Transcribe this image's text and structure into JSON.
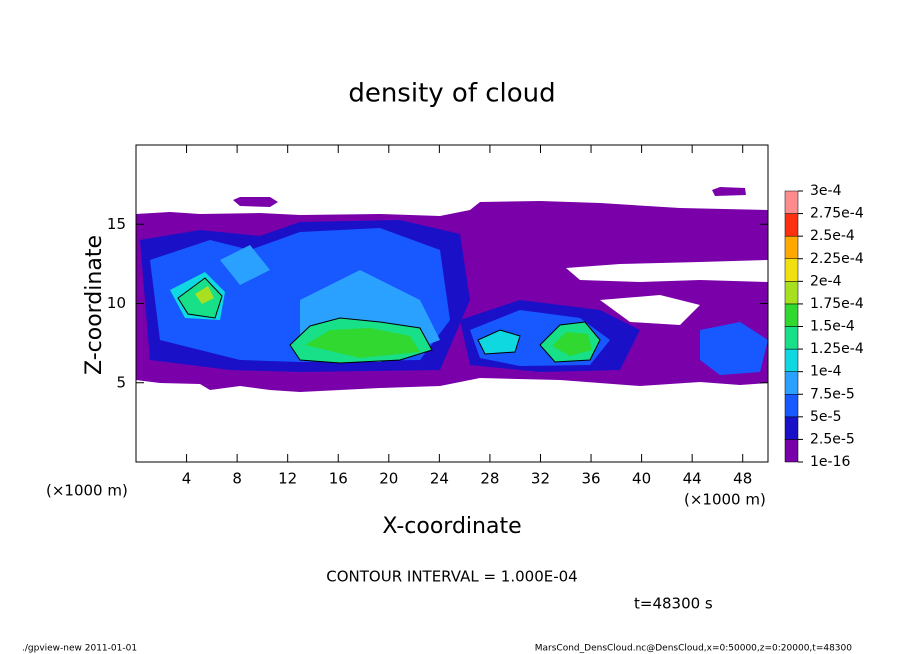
{
  "chart_data": {
    "type": "contour",
    "title": "density of cloud",
    "xlabel": "X-coordinate",
    "ylabel": "Z-coordinate",
    "xunit": "(×1000 m)",
    "xunit_right": "(×1000 m)",
    "xlim": [
      0,
      50
    ],
    "ylim": [
      0,
      20
    ],
    "xticks": [
      4,
      8,
      12,
      16,
      20,
      24,
      28,
      32,
      36,
      40,
      44,
      48
    ],
    "yticks": [
      5,
      10,
      15
    ],
    "colorbar": {
      "levels": [
        {
          "value": 1e-16,
          "label": "1e-16"
        },
        {
          "value": 2.5e-05,
          "label": "2.5e-5"
        },
        {
          "value": 5e-05,
          "label": "5e-5"
        },
        {
          "value": 7.5e-05,
          "label": "7.5e-5"
        },
        {
          "value": 0.0001,
          "label": "1e-4"
        },
        {
          "value": 0.000125,
          "label": "1.25e-4"
        },
        {
          "value": 0.00015,
          "label": "1.5e-4"
        },
        {
          "value": 0.000175,
          "label": "1.75e-4"
        },
        {
          "value": 0.0002,
          "label": "2e-4"
        },
        {
          "value": 0.000225,
          "label": "2.25e-4"
        },
        {
          "value": 0.00025,
          "label": "2.5e-4"
        },
        {
          "value": 0.000275,
          "label": "2.75e-4"
        },
        {
          "value": 0.0003,
          "label": "3e-4"
        }
      ],
      "colors": [
        "#7a00aa",
        "#1a10c8",
        "#1858ff",
        "#2aa0ff",
        "#10d8e0",
        "#18e088",
        "#30d830",
        "#a8e020",
        "#f0e010",
        "#ffa800",
        "#ff3010",
        "#ff8c8c"
      ]
    },
    "contour_interval": "CONTOUR INTERVAL = 1.000E-04",
    "time_label": "t=48300 s",
    "footer_left": "./gpview-new   2011-01-01",
    "footer_right": "MarsCond_DensCloud.nc@DensCloud,x=0:50000,z=0:20000,t=48300"
  }
}
